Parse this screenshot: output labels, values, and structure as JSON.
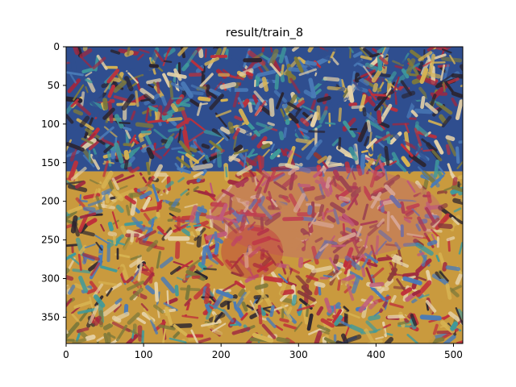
{
  "chart_data": {
    "type": "image",
    "title": "result/train_8",
    "xlabel": "",
    "ylabel": "",
    "xlim": [
      0,
      512
    ],
    "ylim": [
      384,
      0
    ],
    "x_ticks": [
      0,
      100,
      200,
      300,
      400,
      500
    ],
    "y_ticks": [
      0,
      50,
      100,
      150,
      200,
      250,
      300,
      350
    ],
    "image_description": "style-transferred image of a sea turtle on grass with a dense multicolored brushstroke texture",
    "palette": {
      "sky_blue": "#4a7bb8",
      "deep_blue": "#2f4e8f",
      "teal": "#3f9a9c",
      "red": "#c0303a",
      "crimson": "#a02840",
      "ochre": "#c99a3e",
      "gold": "#d8b452",
      "olive": "#7f7a3a",
      "shell_pink": "#c05a7a",
      "shell_brown": "#8a3a3a",
      "cream": "#e6d2a8",
      "dark": "#2a2430"
    }
  }
}
